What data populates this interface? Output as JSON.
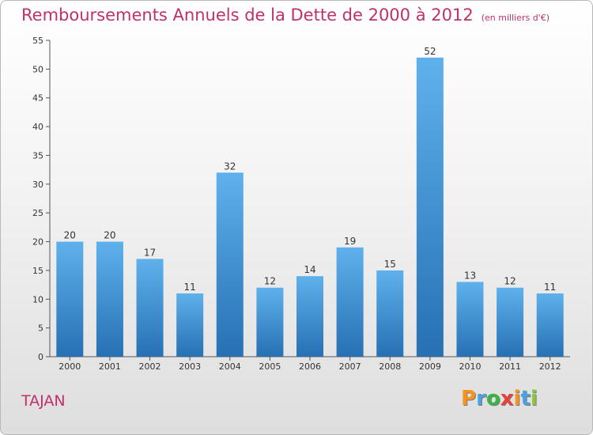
{
  "title": "Remboursements Annuels de la Dette de 2000 à 2012",
  "subtitle": "(en milliers d'€)",
  "commune": "TAJAN",
  "logo": {
    "text": "Proxiti",
    "colors": [
      "#f7931e",
      "#4aa3df",
      "#39b54a",
      "#e6433a",
      "#f7931e",
      "#4aa3df",
      "#8cc63f"
    ]
  },
  "colors": {
    "bar": "#3a95d8",
    "bar_top": "#5fb1ec",
    "bar_bottom": "#2670b3",
    "title": "#c0306a"
  },
  "chart_data": {
    "type": "bar",
    "title": "Remboursements Annuels de la Dette de 2000 à 2012",
    "subtitle": "(en milliers d'€)",
    "categories": [
      "2000",
      "2001",
      "2002",
      "2003",
      "2004",
      "2005",
      "2006",
      "2007",
      "2008",
      "2009",
      "2010",
      "2011",
      "2012"
    ],
    "values": [
      20,
      20,
      17,
      11,
      32,
      12,
      14,
      19,
      15,
      52,
      13,
      12,
      11
    ],
    "ylim": [
      0,
      55
    ],
    "yticks": [
      0,
      5,
      10,
      15,
      20,
      25,
      30,
      35,
      40,
      45,
      50,
      55
    ],
    "grid": false,
    "legend": "none"
  }
}
